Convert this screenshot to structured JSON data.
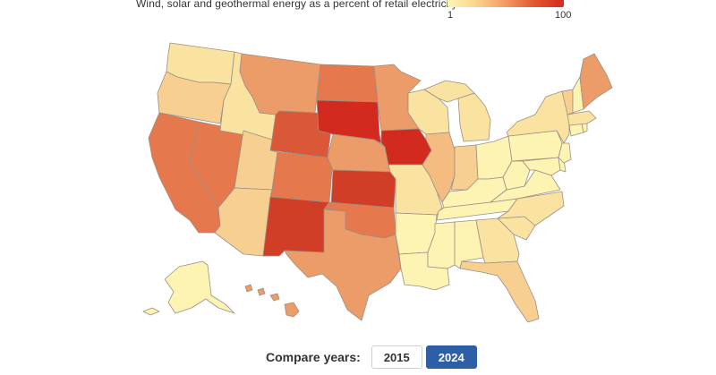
{
  "legend": {
    "title": "Wind, solar and geothermal energy as a percent of retail electricity sales",
    "min_label": "1",
    "max_label": "100",
    "color_low": "#fdf6b5",
    "color_high": "#d22a1f"
  },
  "compare": {
    "label": "Compare years:",
    "years": [
      "2015",
      "2024"
    ],
    "selected": "2024",
    "active_color": "#2e5fa6"
  },
  "palette": {
    "c1": "#fdf3b3",
    "c2": "#fae3a1",
    "c3": "#f7d091",
    "c4": "#f5bc82",
    "c5": "#ec9c68",
    "c6": "#e5784c",
    "c7": "#da5838",
    "c8": "#d13e28",
    "c9": "#d22a1f"
  }
}
